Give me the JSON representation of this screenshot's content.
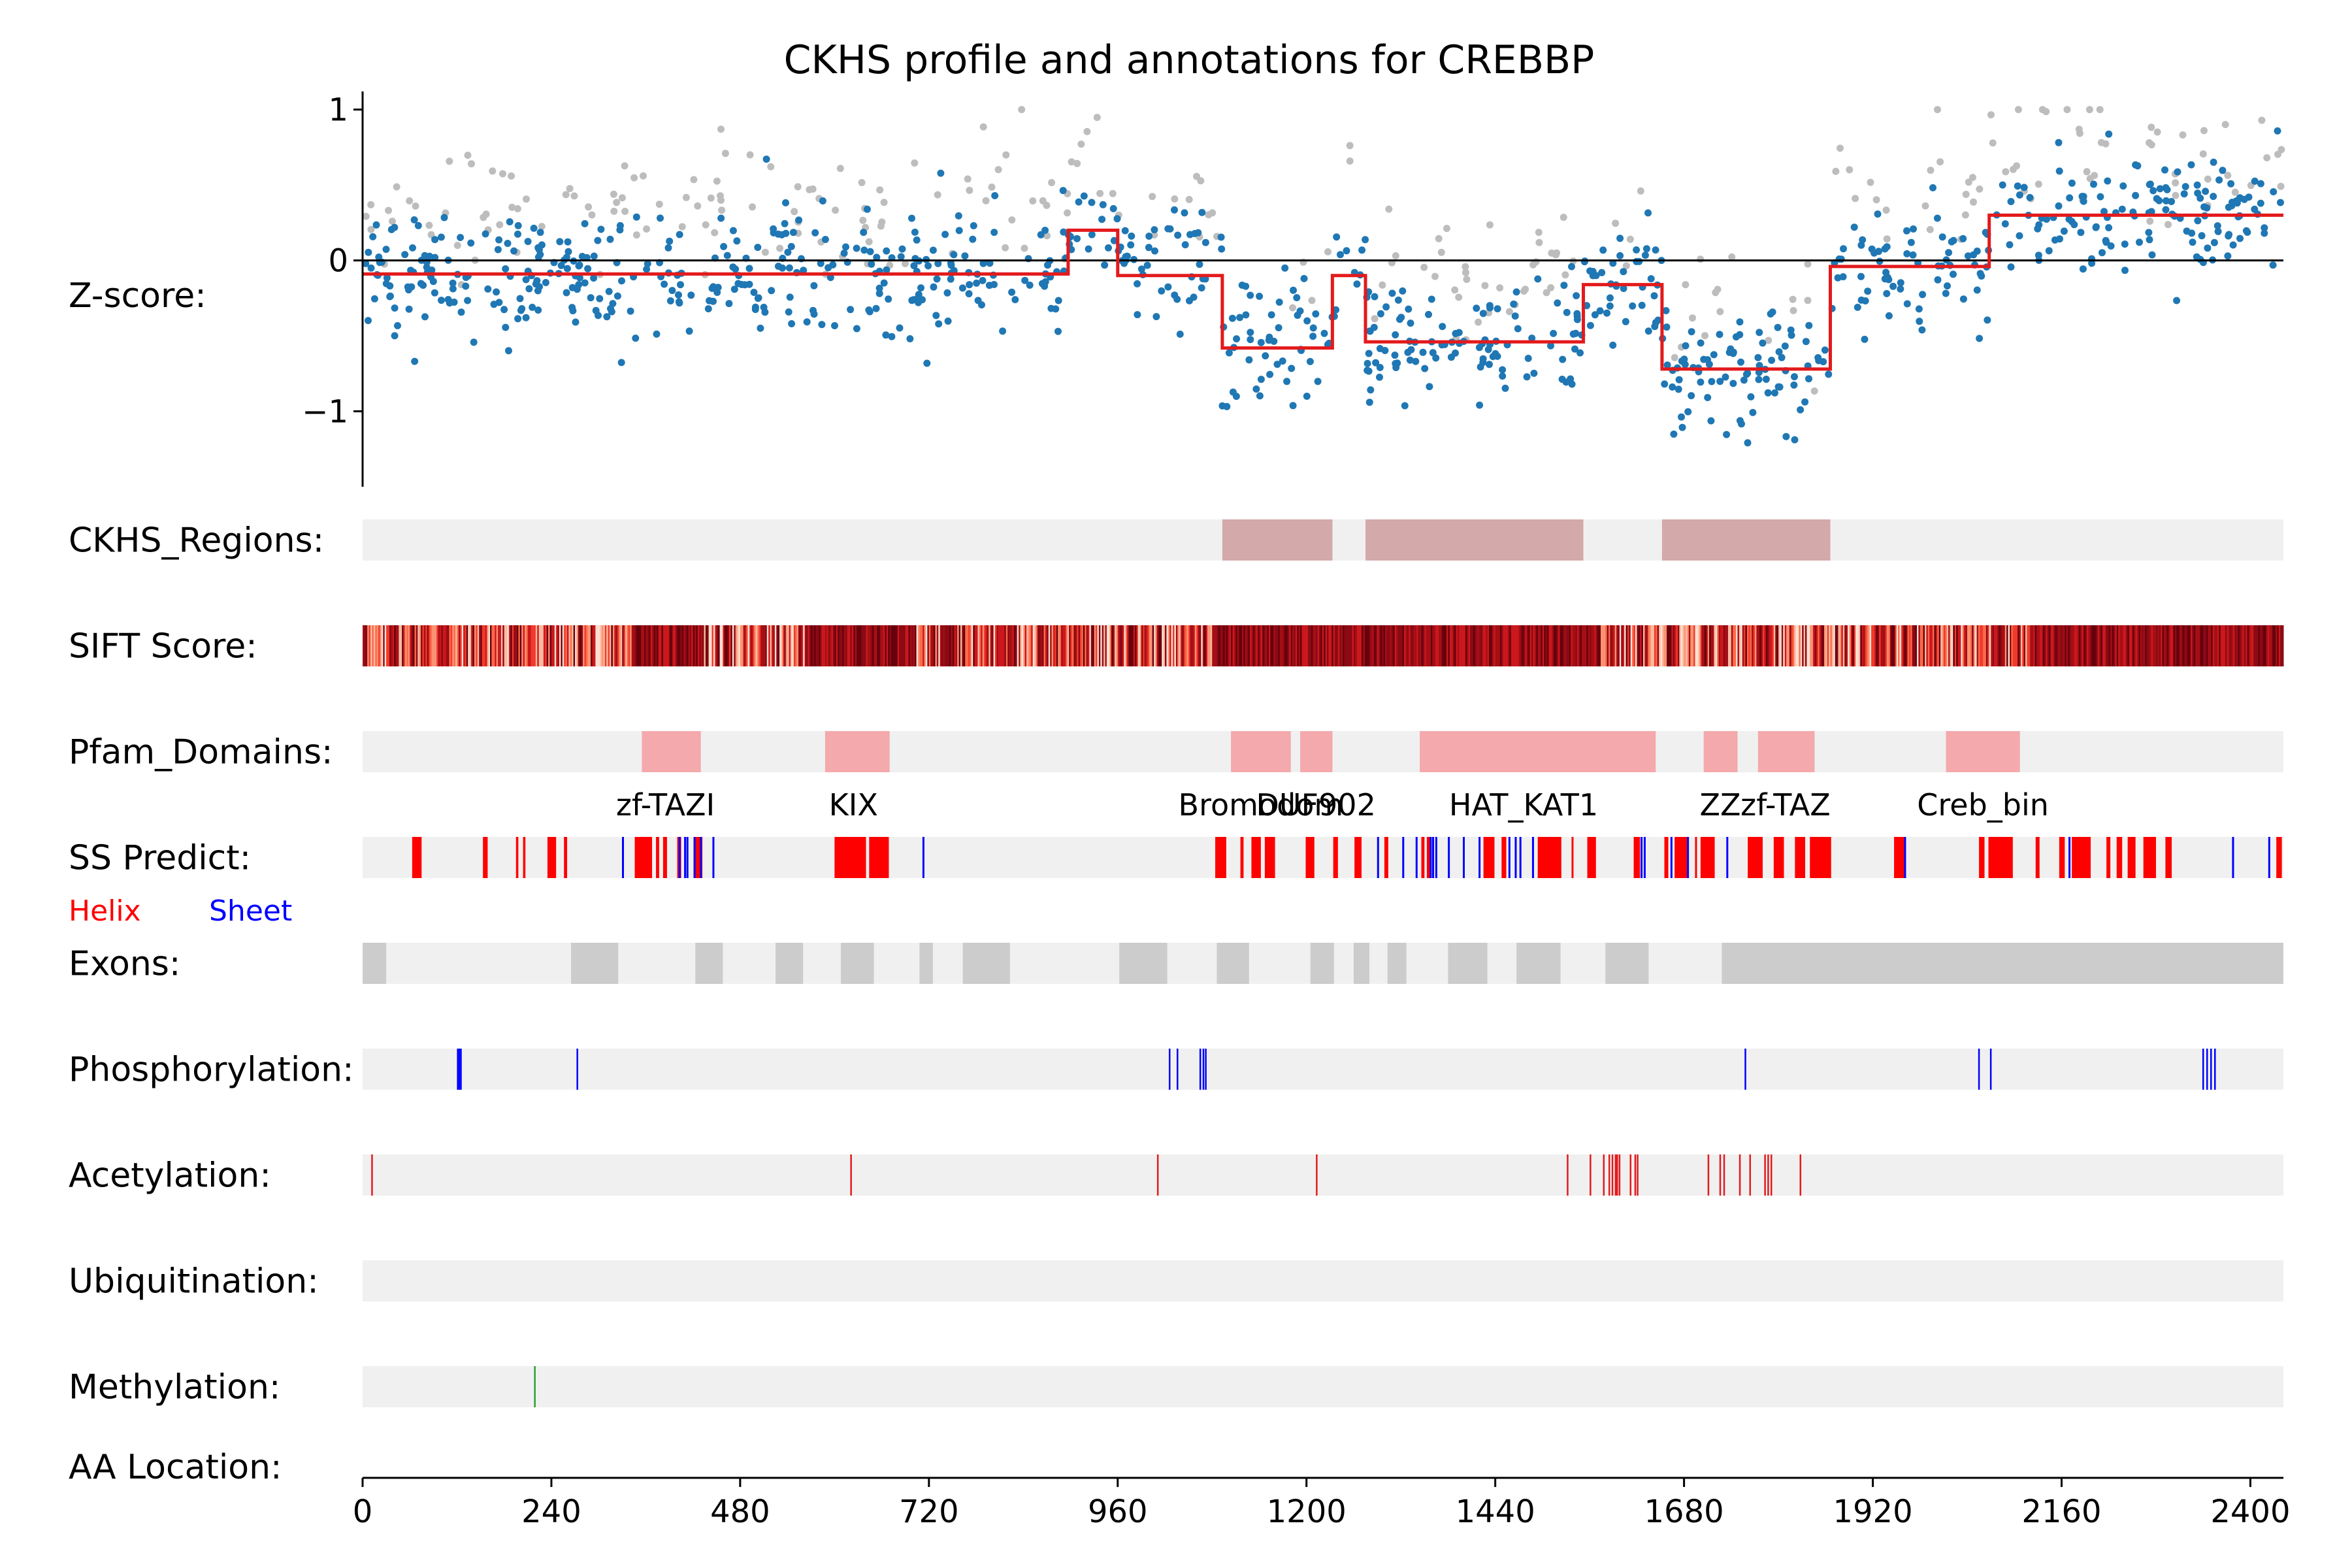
{
  "chart_data": {
    "type": "scatter",
    "title": "CKHS profile and annotations for CREBBP",
    "xlim": [
      0,
      2442
    ],
    "ylim": [
      -1.5,
      1.12
    ],
    "yticks": [
      {
        "v": 1,
        "label": "1"
      },
      {
        "v": 0,
        "label": "0"
      },
      {
        "v": -1,
        "label": "−1"
      }
    ],
    "xticks": [
      0,
      240,
      480,
      720,
      960,
      1200,
      1440,
      1680,
      1920,
      2160,
      2400
    ],
    "zscore_label": "Z-score:",
    "aa_location_label": "AA Location:",
    "colors": {
      "point": "#1f77b4",
      "point_grey": "#bdbdbd",
      "step": "#e31a1c",
      "track_bg": "#f0f0f0",
      "ckhs_region": "#d4a9a9",
      "pfam": "#f4a9ac",
      "helix": "#ff0000",
      "sheet": "#0000ff",
      "exon": "#cccccc",
      "phospho": "#0000ff",
      "acetyl": "#e31a1c",
      "methyl": "#2ca02c"
    },
    "step_segments": [
      {
        "start": 0,
        "end": 897,
        "value": -0.09
      },
      {
        "start": 897,
        "end": 960,
        "value": 0.2
      },
      {
        "start": 960,
        "end": 1093,
        "value": -0.1
      },
      {
        "start": 1093,
        "end": 1233,
        "value": -0.58
      },
      {
        "start": 1233,
        "end": 1275,
        "value": -0.1
      },
      {
        "start": 1275,
        "end": 1552,
        "value": -0.54
      },
      {
        "start": 1552,
        "end": 1652,
        "value": -0.16
      },
      {
        "start": 1652,
        "end": 1866,
        "value": -0.72
      },
      {
        "start": 1866,
        "end": 2068,
        "value": -0.04
      },
      {
        "start": 2068,
        "end": 2442,
        "value": 0.3
      }
    ],
    "point_summary": {
      "count": 1200,
      "spread": 0.2,
      "grey_fraction": 0.2
    },
    "tracks": [
      {
        "label": "CKHS_Regions:",
        "type": "regions",
        "color_key": "ckhs_region",
        "regions": [
          [
            1093,
            1233
          ],
          [
            1275,
            1552
          ],
          [
            1652,
            1866
          ]
        ]
      },
      {
        "label": "SIFT Score:",
        "type": "heat"
      },
      {
        "label": "Pfam_Domains:",
        "type": "regions",
        "color_key": "pfam",
        "regions": [
          [
            355,
            430
          ],
          [
            588,
            670
          ],
          [
            1104,
            1180
          ],
          [
            1192,
            1233
          ],
          [
            1344,
            1644
          ],
          [
            1705,
            1748
          ],
          [
            1774,
            1846
          ],
          [
            2013,
            2107
          ]
        ]
      },
      {
        "label": "SS Predict:",
        "type": "ss"
      },
      {
        "label": "Exons:",
        "type": "regions",
        "color_key": "exon",
        "regions": [
          [
            0,
            30
          ],
          [
            265,
            325
          ],
          [
            423,
            458
          ],
          [
            525,
            560
          ],
          [
            608,
            650
          ],
          [
            708,
            725
          ],
          [
            763,
            823
          ],
          [
            962,
            1023
          ],
          [
            1086,
            1127
          ],
          [
            1205,
            1235
          ],
          [
            1260,
            1280
          ],
          [
            1303,
            1327
          ],
          [
            1380,
            1430
          ],
          [
            1467,
            1523
          ],
          [
            1580,
            1635
          ],
          [
            1728,
            2442
          ]
        ]
      },
      {
        "label": "Phosphorylation:",
        "type": "ticks",
        "color_key": "phospho",
        "positions": [
          121,
          123,
          125,
          273,
          1026,
          1036,
          1065,
          1069,
          1072,
          1758,
          2055,
          2070,
          2340,
          2345,
          2350,
          2355
        ]
      },
      {
        "label": "Acetylation:",
        "type": "ticks",
        "color_key": "acetyl",
        "positions": [
          12,
          621,
          1011,
          1213,
          1532,
          1561,
          1578,
          1585,
          1589,
          1593,
          1595,
          1598,
          1612,
          1618,
          1621,
          1711,
          1726,
          1731,
          1751,
          1764,
          1783,
          1787,
          1791,
          1828
        ]
      },
      {
        "label": "Ubiquitination:",
        "type": "ticks",
        "color_key": "phospho",
        "positions": []
      },
      {
        "label": "Methylation:",
        "type": "ticks",
        "color_key": "methyl",
        "positions": [
          219
        ]
      }
    ],
    "pfam_labels": [
      {
        "text": "zf-TAZI",
        "x": 385
      },
      {
        "text": "KIX",
        "x": 624
      },
      {
        "text": "Bromodom",
        "x": 1142
      },
      {
        "text": "DUF902",
        "x": 1212
      },
      {
        "text": "HAT_KAT1",
        "x": 1476
      },
      {
        "text": "ZZ",
        "x": 1726
      },
      {
        "text": "zf-TAZ",
        "x": 1809
      },
      {
        "text": "Creb_bin",
        "x": 2060
      }
    ],
    "legend": {
      "helix": "Helix",
      "sheet": "Sheet"
    },
    "helix_segments": [
      [
        63,
        75
      ],
      [
        153,
        159
      ],
      [
        195,
        198
      ],
      [
        204,
        207
      ],
      [
        235,
        246
      ],
      [
        256,
        260
      ],
      [
        346,
        368
      ],
      [
        373,
        377
      ],
      [
        382,
        387
      ],
      [
        400,
        405
      ],
      [
        422,
        432
      ],
      [
        600,
        640
      ],
      [
        644,
        669
      ],
      [
        1084,
        1098
      ],
      [
        1116,
        1120
      ],
      [
        1130,
        1142
      ],
      [
        1147,
        1160
      ],
      [
        1199,
        1210
      ],
      [
        1234,
        1240
      ],
      [
        1261,
        1270
      ],
      [
        1299,
        1304
      ],
      [
        1346,
        1350
      ],
      [
        1353,
        1358
      ],
      [
        1425,
        1439
      ],
      [
        1448,
        1454
      ],
      [
        1494,
        1524
      ],
      [
        1537,
        1539
      ],
      [
        1557,
        1568
      ],
      [
        1616,
        1624
      ],
      [
        1655,
        1660
      ],
      [
        1668,
        1684
      ],
      [
        1694,
        1696
      ],
      [
        1701,
        1719
      ],
      [
        1761,
        1780
      ],
      [
        1794,
        1807
      ],
      [
        1821,
        1834
      ],
      [
        1840,
        1867
      ],
      [
        1947,
        1961
      ],
      [
        2055,
        2062
      ],
      [
        2067,
        2098
      ],
      [
        2127,
        2132
      ],
      [
        2157,
        2164
      ],
      [
        2173,
        2197
      ],
      [
        2217,
        2222
      ],
      [
        2230,
        2237
      ],
      [
        2244,
        2254
      ],
      [
        2264,
        2280
      ],
      [
        2292,
        2300
      ],
      [
        2433,
        2440
      ]
    ],
    "sheet_positions": [
      331,
      403,
      410,
      413,
      422,
      430,
      446,
      713,
      1291,
      1323,
      1340,
      1358,
      1361,
      1365,
      1381,
      1400,
      1420,
      1458,
      1466,
      1472,
      1488,
      1626,
      1630,
      1664,
      1685,
      1735,
      1961,
      2170,
      2378,
      2424
    ]
  }
}
